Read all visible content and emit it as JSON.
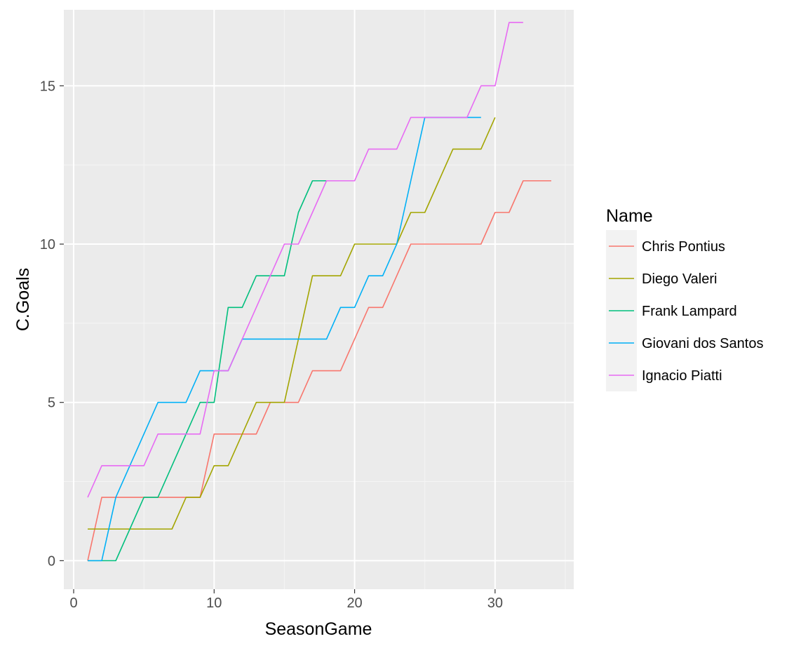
{
  "chart_data": {
    "type": "line",
    "title": "",
    "xlabel": "SeasonGame",
    "ylabel": "C.Goals",
    "xlim": [
      -0.7,
      35.6
    ],
    "ylim": [
      -0.9,
      17.4
    ],
    "x_ticks": [
      0,
      10,
      20,
      30
    ],
    "y_ticks": [
      0,
      5,
      10,
      15
    ],
    "x_tick_labels": [
      "0",
      "10",
      "20",
      "30"
    ],
    "y_tick_labels": [
      "0",
      "5",
      "10",
      "15"
    ],
    "grid": true,
    "legend_position": "right",
    "legend_title": "Name",
    "series": [
      {
        "name": "Chris Pontius",
        "color": "#F8766D",
        "x": [
          1,
          2,
          3,
          4,
          5,
          6,
          7,
          8,
          9,
          10,
          11,
          12,
          13,
          14,
          15,
          16,
          17,
          18,
          19,
          20,
          21,
          22,
          23,
          24,
          25,
          26,
          27,
          28,
          29,
          30,
          31,
          32,
          33,
          34
        ],
        "y": [
          0,
          2,
          2,
          2,
          2,
          2,
          2,
          2,
          2,
          4,
          4,
          4,
          4,
          5,
          5,
          5,
          6,
          6,
          6,
          7,
          8,
          8,
          9,
          10,
          10,
          10,
          10,
          10,
          10,
          11,
          11,
          12,
          12,
          12
        ]
      },
      {
        "name": "Diego Valeri",
        "color": "#A3A500",
        "x": [
          1,
          2,
          3,
          4,
          5,
          6,
          7,
          8,
          9,
          10,
          11,
          12,
          13,
          14,
          15,
          16,
          17,
          18,
          19,
          20,
          21,
          22,
          23,
          24,
          25,
          26,
          27,
          28,
          29,
          30
        ],
        "y": [
          1,
          1,
          1,
          1,
          1,
          1,
          1,
          2,
          2,
          3,
          3,
          4,
          5,
          5,
          5,
          7,
          9,
          9,
          9,
          10,
          10,
          10,
          10,
          11,
          11,
          12,
          13,
          13,
          13,
          14
        ]
      },
      {
        "name": "Frank Lampard",
        "color": "#00BF7D",
        "x": [
          1,
          2,
          3,
          4,
          5,
          6,
          7,
          8,
          9,
          10,
          11,
          12,
          13,
          14,
          15,
          16,
          17,
          18
        ],
        "y": [
          0,
          0,
          0,
          1,
          2,
          2,
          3,
          4,
          5,
          5,
          8,
          8,
          9,
          9,
          9,
          11,
          12,
          12
        ]
      },
      {
        "name": "Giovani dos Santos",
        "color": "#00B0F6",
        "x": [
          1,
          2,
          3,
          4,
          5,
          6,
          7,
          8,
          9,
          10,
          11,
          12,
          13,
          14,
          15,
          16,
          17,
          18,
          19,
          20,
          21,
          22,
          23,
          24,
          25,
          26,
          27,
          28,
          29
        ],
        "y": [
          0,
          0,
          2,
          3,
          4,
          5,
          5,
          5,
          6,
          6,
          6,
          7,
          7,
          7,
          7,
          7,
          7,
          7,
          8,
          8,
          9,
          9,
          10,
          12,
          14,
          14,
          14,
          14,
          14
        ]
      },
      {
        "name": "Ignacio Piatti",
        "color": "#E76BF3",
        "x": [
          1,
          2,
          3,
          4,
          5,
          6,
          7,
          8,
          9,
          10,
          11,
          12,
          13,
          14,
          15,
          16,
          17,
          18,
          19,
          20,
          21,
          22,
          23,
          24,
          25,
          26,
          27,
          28,
          29,
          30,
          31,
          32
        ],
        "y": [
          2,
          3,
          3,
          3,
          3,
          4,
          4,
          4,
          4,
          6,
          6,
          7,
          8,
          9,
          10,
          10,
          11,
          12,
          12,
          12,
          13,
          13,
          13,
          14,
          14,
          14,
          14,
          14,
          15,
          15,
          17,
          17
        ]
      }
    ]
  }
}
